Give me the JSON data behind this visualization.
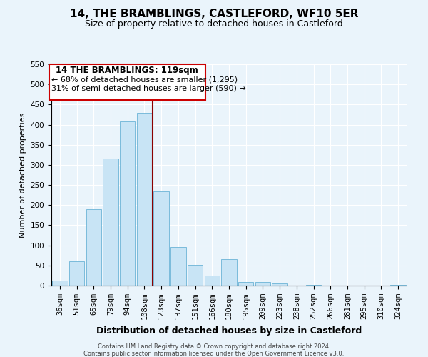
{
  "title": "14, THE BRAMBLINGS, CASTLEFORD, WF10 5ER",
  "subtitle": "Size of property relative to detached houses in Castleford",
  "xlabel": "Distribution of detached houses by size in Castleford",
  "ylabel": "Number of detached properties",
  "footer_line1": "Contains HM Land Registry data © Crown copyright and database right 2024.",
  "footer_line2": "Contains public sector information licensed under the Open Government Licence v3.0.",
  "bar_labels": [
    "36sqm",
    "51sqm",
    "65sqm",
    "79sqm",
    "94sqm",
    "108sqm",
    "123sqm",
    "137sqm",
    "151sqm",
    "166sqm",
    "180sqm",
    "195sqm",
    "209sqm",
    "223sqm",
    "238sqm",
    "252sqm",
    "266sqm",
    "281sqm",
    "295sqm",
    "310sqm",
    "324sqm"
  ],
  "bar_values": [
    12,
    60,
    190,
    315,
    408,
    430,
    235,
    95,
    52,
    25,
    65,
    8,
    8,
    5,
    0,
    2,
    0,
    0,
    0,
    0,
    2
  ],
  "bar_color": "#c8e4f5",
  "bar_edge_color": "#6bb3d6",
  "vline_x": 5.5,
  "vline_color": "#8b0000",
  "ylim": [
    0,
    550
  ],
  "yticks": [
    0,
    50,
    100,
    150,
    200,
    250,
    300,
    350,
    400,
    450,
    500,
    550
  ],
  "annotation_title": "14 THE BRAMBLINGS: 119sqm",
  "annotation_line1": "← 68% of detached houses are smaller (1,295)",
  "annotation_line2": "31% of semi-detached houses are larger (590) →",
  "title_fontsize": 11,
  "subtitle_fontsize": 9,
  "xlabel_fontsize": 9,
  "ylabel_fontsize": 8,
  "tick_fontsize": 7.5,
  "annotation_fontsize": 8,
  "background_color": "#eaf4fb"
}
